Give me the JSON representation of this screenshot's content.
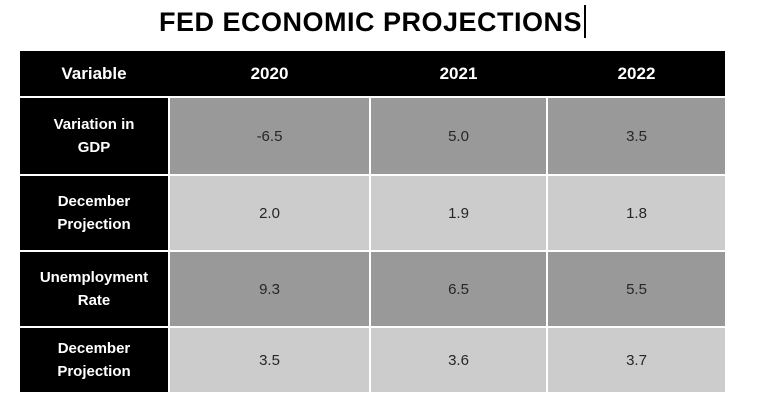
{
  "title": {
    "text": "FED ECONOMIC PROJECTIONS",
    "cursor_visible": true
  },
  "table": {
    "columns": [
      "Variable",
      "2020",
      "2021",
      "2022"
    ],
    "rows": [
      {
        "label_lines": [
          "Variation in",
          "GDP"
        ],
        "values": [
          "-6.5",
          "5.0",
          "3.5"
        ],
        "shade": "dark"
      },
      {
        "label_lines": [
          "December",
          "Projection"
        ],
        "values": [
          "2.0",
          "1.9",
          "1.8"
        ],
        "shade": "light"
      },
      {
        "label_lines": [
          "Unemployment",
          "Rate"
        ],
        "values": [
          "9.3",
          "6.5",
          "5.5"
        ],
        "shade": "dark"
      },
      {
        "label_lines": [
          "December",
          "Projection"
        ],
        "values": [
          "3.5",
          "3.6",
          "3.7"
        ],
        "shade": "light"
      }
    ],
    "colors": {
      "header_bg": "#000000",
      "header_text": "#ffffff",
      "row_label_bg": "#000000",
      "row_dark_bg": "#999999",
      "row_light_bg": "#cccccc",
      "value_text": "#262626",
      "gridline": "#ffffff"
    }
  },
  "chart_data": {
    "type": "table",
    "title": "FED ECONOMIC PROJECTIONS",
    "columns": [
      "Variable",
      "2020",
      "2021",
      "2022"
    ],
    "rows": [
      {
        "variable": "Variation in GDP",
        "2020": -6.5,
        "2021": 5.0,
        "2022": 3.5
      },
      {
        "variable": "December Projection",
        "2020": 2.0,
        "2021": 1.9,
        "2022": 1.8
      },
      {
        "variable": "Unemployment Rate",
        "2020": 9.3,
        "2021": 6.5,
        "2022": 5.5
      },
      {
        "variable": "December Projection",
        "2020": 3.5,
        "2021": 3.6,
        "2022": 3.7
      }
    ]
  }
}
